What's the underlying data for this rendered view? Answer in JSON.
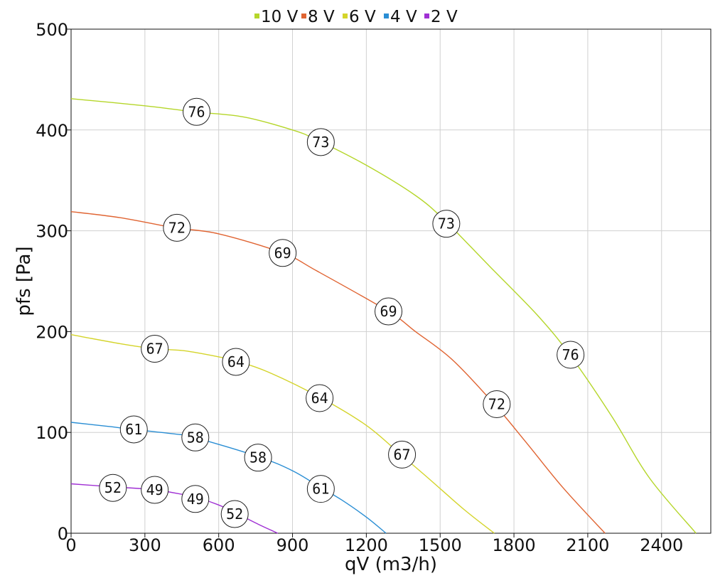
{
  "chart_data": {
    "type": "line",
    "xlabel": "qV (m3/h)",
    "ylabel": "pfs [Pa]",
    "xlim": [
      0,
      2600
    ],
    "ylim": [
      0,
      500
    ],
    "xticks": [
      0,
      300,
      600,
      900,
      1200,
      1500,
      1800,
      2100,
      2400
    ],
    "yticks": [
      0,
      100,
      200,
      300,
      400,
      500
    ],
    "grid": true,
    "legend_position": "top",
    "series": [
      {
        "name": "10 V",
        "color": "#b5d62a",
        "points": [
          [
            0,
            431
          ],
          [
            300,
            424
          ],
          [
            500,
            418
          ],
          [
            700,
            413
          ],
          [
            900,
            400
          ],
          [
            1000,
            390
          ],
          [
            1200,
            365
          ],
          [
            1400,
            335
          ],
          [
            1520,
            310
          ],
          [
            1700,
            265
          ],
          [
            1900,
            215
          ],
          [
            2030,
            176
          ],
          [
            2200,
            115
          ],
          [
            2350,
            55
          ],
          [
            2540,
            0
          ]
        ],
        "labels": [
          {
            "x": 510,
            "y": 418,
            "text": "76"
          },
          {
            "x": 1015,
            "y": 388,
            "text": "73"
          },
          {
            "x": 1525,
            "y": 307,
            "text": "73"
          },
          {
            "x": 2030,
            "y": 177,
            "text": "76"
          }
        ]
      },
      {
        "name": "8 V",
        "color": "#e06432",
        "points": [
          [
            0,
            319
          ],
          [
            200,
            313
          ],
          [
            420,
            303
          ],
          [
            600,
            297
          ],
          [
            860,
            278
          ],
          [
            1000,
            260
          ],
          [
            1290,
            220
          ],
          [
            1400,
            200
          ],
          [
            1550,
            172
          ],
          [
            1720,
            128
          ],
          [
            1850,
            90
          ],
          [
            2000,
            45
          ],
          [
            2170,
            0
          ]
        ],
        "labels": [
          {
            "x": 430,
            "y": 303,
            "text": "72"
          },
          {
            "x": 860,
            "y": 278,
            "text": "69"
          },
          {
            "x": 1290,
            "y": 220,
            "text": "69"
          },
          {
            "x": 1730,
            "y": 128,
            "text": "72"
          }
        ]
      },
      {
        "name": "6 V",
        "color": "#d4d42a",
        "points": [
          [
            0,
            197
          ],
          [
            200,
            188
          ],
          [
            340,
            183
          ],
          [
            460,
            181
          ],
          [
            600,
            175
          ],
          [
            670,
            171
          ],
          [
            800,
            160
          ],
          [
            1010,
            135
          ],
          [
            1200,
            107
          ],
          [
            1340,
            78
          ],
          [
            1450,
            55
          ],
          [
            1600,
            23
          ],
          [
            1720,
            0
          ]
        ],
        "labels": [
          {
            "x": 340,
            "y": 183,
            "text": "67"
          },
          {
            "x": 670,
            "y": 170,
            "text": "64"
          },
          {
            "x": 1010,
            "y": 134,
            "text": "64"
          },
          {
            "x": 1345,
            "y": 78,
            "text": "67"
          }
        ]
      },
      {
        "name": "4 V",
        "color": "#2a8ed4",
        "points": [
          [
            0,
            110
          ],
          [
            150,
            106
          ],
          [
            250,
            103
          ],
          [
            400,
            99
          ],
          [
            500,
            95
          ],
          [
            760,
            76
          ],
          [
            900,
            62
          ],
          [
            1010,
            46
          ],
          [
            1100,
            33
          ],
          [
            1200,
            16
          ],
          [
            1280,
            0
          ]
        ],
        "labels": [
          {
            "x": 255,
            "y": 103,
            "text": "61"
          },
          {
            "x": 505,
            "y": 95,
            "text": "58"
          },
          {
            "x": 760,
            "y": 75,
            "text": "58"
          },
          {
            "x": 1015,
            "y": 44,
            "text": "61"
          }
        ]
      },
      {
        "name": "2 V",
        "color": "#a030d4",
        "points": [
          [
            0,
            49
          ],
          [
            170,
            46
          ],
          [
            340,
            43
          ],
          [
            500,
            36
          ],
          [
            600,
            28
          ],
          [
            670,
            20
          ],
          [
            760,
            9
          ],
          [
            840,
            0
          ]
        ],
        "labels": [
          {
            "x": 170,
            "y": 45,
            "text": "52"
          },
          {
            "x": 340,
            "y": 43,
            "text": "49"
          },
          {
            "x": 505,
            "y": 34,
            "text": "49"
          },
          {
            "x": 665,
            "y": 19,
            "text": "52"
          }
        ]
      }
    ]
  }
}
